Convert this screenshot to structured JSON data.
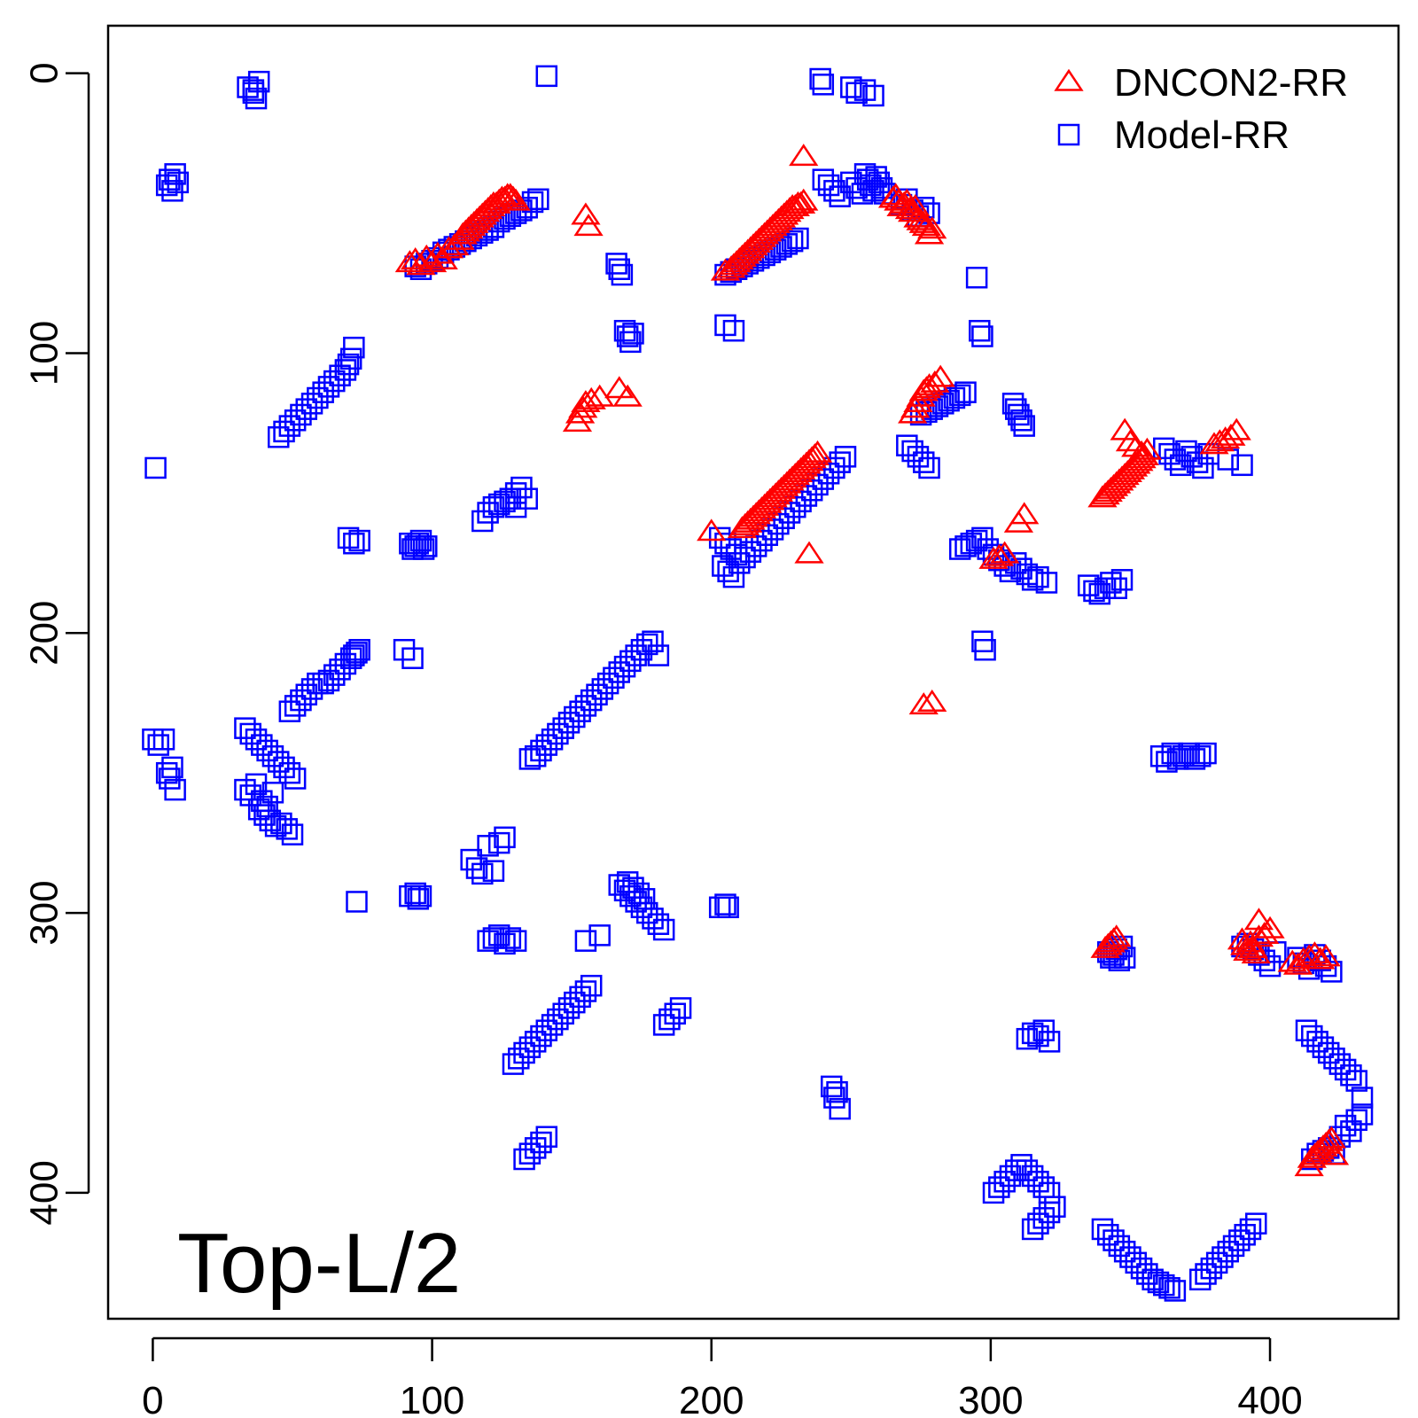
{
  "chart_data": {
    "type": "scatter",
    "title": "",
    "xlabel": "",
    "ylabel": "",
    "annotation": "Top-L/2",
    "xlim": [
      -16,
      446
    ],
    "ylim": [
      445,
      -17
    ],
    "y_reversed": true,
    "x_ticks": [
      0,
      100,
      200,
      300,
      400
    ],
    "y_ticks": [
      0,
      100,
      200,
      300,
      400
    ],
    "x_tick_labels": [
      "0",
      "100",
      "200",
      "300",
      "400"
    ],
    "y_tick_labels": [
      "0",
      "100",
      "200",
      "300",
      "400"
    ],
    "grid": false,
    "legend_position": "top-right",
    "series": [
      {
        "name": "DNCON2-RR",
        "marker": "triangle",
        "color": "#ff0000",
        "x": [
          92,
          94,
          96,
          98,
          100,
          102,
          104,
          106,
          108,
          110,
          111,
          112,
          113,
          114,
          115,
          116,
          117,
          118,
          119,
          120,
          121,
          122,
          123,
          124,
          125,
          126,
          127,
          128,
          129,
          130,
          155,
          156,
          152,
          153,
          154,
          155,
          157,
          160,
          167,
          170,
          205,
          207,
          208,
          209,
          210,
          211,
          212,
          213,
          214,
          215,
          216,
          217,
          218,
          219,
          220,
          221,
          222,
          223,
          224,
          225,
          226,
          227,
          228,
          229,
          230,
          231,
          232,
          233,
          233,
          265,
          266,
          267,
          268,
          269,
          270,
          271,
          272,
          273,
          274,
          275,
          276,
          277,
          278,
          279,
          272,
          273,
          274,
          275,
          276,
          277,
          278,
          280,
          282,
          200,
          211,
          212,
          213,
          214,
          215,
          216,
          217,
          218,
          219,
          220,
          221,
          222,
          223,
          224,
          225,
          226,
          227,
          228,
          229,
          230,
          231,
          232,
          233,
          234,
          235,
          236,
          237,
          238,
          235,
          276,
          279,
          301,
          303,
          305,
          310,
          312,
          348,
          350,
          352,
          354,
          356,
          340,
          341,
          342,
          343,
          344,
          345,
          346,
          347,
          348,
          349,
          350,
          351,
          352,
          353,
          354,
          355,
          380,
          382,
          384,
          386,
          388,
          341,
          342,
          343,
          344,
          345,
          394,
          396,
          390,
          391,
          392,
          393,
          394,
          395,
          396,
          398,
          400,
          408,
          410,
          412,
          414,
          416,
          418,
          420,
          414,
          415,
          416,
          417,
          418,
          419,
          420,
          421,
          422,
          423
        ],
        "y": [
          68,
          67,
          69,
          66,
          68,
          65,
          67,
          63,
          62,
          60,
          58,
          57,
          56,
          55,
          54,
          53,
          52,
          51,
          50,
          49,
          48,
          47,
          47,
          46,
          45,
          45,
          44,
          44,
          45,
          46,
          51,
          55,
          125,
          122,
          120,
          118,
          117,
          116,
          113,
          116,
          71,
          70,
          69,
          68,
          67,
          66,
          65,
          64,
          63,
          62,
          61,
          60,
          59,
          58,
          57,
          56,
          55,
          54,
          53,
          52,
          51,
          50,
          49,
          48,
          48,
          47,
          47,
          46,
          30,
          45,
          44,
          46,
          48,
          47,
          46,
          49,
          50,
          48,
          52,
          53,
          54,
          55,
          58,
          56,
          122,
          120,
          118,
          116,
          114,
          113,
          112,
          111,
          109,
          164,
          163,
          162,
          161,
          160,
          159,
          158,
          157,
          156,
          155,
          154,
          153,
          152,
          151,
          150,
          149,
          148,
          147,
          146,
          145,
          144,
          143,
          142,
          141,
          140,
          139,
          138,
          137,
          136,
          172,
          226,
          225,
          174,
          173,
          172,
          161,
          158,
          128,
          132,
          134,
          136,
          135,
          152,
          151,
          150,
          149,
          148,
          147,
          146,
          145,
          144,
          143,
          142,
          141,
          140,
          139,
          138,
          137,
          133,
          132,
          131,
          130,
          128,
          313,
          312,
          311,
          310,
          309,
          313,
          303,
          310,
          312,
          314,
          311,
          313,
          315,
          309,
          308,
          306,
          318,
          319,
          317,
          316,
          315,
          317,
          316,
          391,
          388,
          387,
          386,
          385,
          384,
          383,
          382,
          381,
          387
        ]
      },
      {
        "name": "Model-RR",
        "marker": "square",
        "color": "#0000ff",
        "x": [
          34,
          36,
          38,
          37,
          36,
          141,
          5,
          6,
          7,
          8,
          9,
          239,
          240,
          250,
          252,
          255,
          258,
          240,
          242,
          244,
          246,
          250,
          252,
          254,
          255,
          256,
          257,
          258,
          259,
          260,
          261,
          262,
          268,
          270,
          272,
          274,
          276,
          278,
          94,
          96,
          98,
          100,
          102,
          104,
          106,
          108,
          110,
          112,
          114,
          116,
          118,
          120,
          122,
          124,
          126,
          128,
          130,
          132,
          134,
          136,
          138,
          205,
          207,
          209,
          211,
          213,
          215,
          217,
          219,
          221,
          223,
          225,
          227,
          229,
          231,
          166,
          167,
          168,
          169,
          170,
          171,
          172,
          205,
          208,
          295,
          296,
          297,
          45,
          47,
          49,
          51,
          53,
          55,
          57,
          59,
          61,
          63,
          65,
          67,
          69,
          70,
          71,
          72,
          1,
          118,
          120,
          122,
          124,
          126,
          128,
          130,
          70,
          72,
          74,
          92,
          93,
          94,
          95,
          96,
          97,
          98,
          275,
          277,
          279,
          281,
          283,
          285,
          287,
          289,
          291,
          308,
          309,
          310,
          311,
          312,
          362,
          364,
          366,
          368,
          370,
          372,
          374,
          376,
          378,
          385,
          390,
          270,
          272,
          274,
          276,
          278,
          204,
          206,
          208,
          210,
          212,
          214,
          216,
          218,
          220,
          222,
          224,
          226,
          228,
          230,
          232,
          234,
          236,
          238,
          240,
          242,
          244,
          246,
          248,
          203,
          205,
          207,
          209,
          289,
          291,
          293,
          295,
          297,
          299,
          301,
          303,
          305,
          307,
          309,
          311,
          313,
          315,
          317,
          320,
          335,
          337,
          339,
          341,
          343,
          345,
          347,
          297,
          298,
          49,
          51,
          53,
          55,
          57,
          59,
          61,
          63,
          65,
          67,
          69,
          71,
          72,
          73,
          74,
          90,
          93,
          135,
          137,
          139,
          141,
          143,
          145,
          147,
          149,
          151,
          153,
          155,
          157,
          159,
          161,
          163,
          165,
          167,
          169,
          171,
          173,
          175,
          177,
          179,
          181,
          0,
          2,
          4,
          5,
          6,
          7,
          8,
          33,
          35,
          37,
          39,
          41,
          43,
          45,
          47,
          49,
          51,
          33,
          35,
          37,
          39,
          41,
          43,
          38,
          40,
          42,
          44,
          46,
          48,
          50,
          361,
          363,
          365,
          367,
          369,
          371,
          373,
          375,
          377,
          114,
          116,
          118,
          120,
          122,
          124,
          126,
          73,
          92,
          94,
          95,
          96,
          167,
          169,
          171,
          173,
          175,
          177,
          179,
          181,
          183,
          170,
          172,
          174,
          176,
          120,
          122,
          124,
          126,
          128,
          130,
          155,
          160,
          203,
          205,
          206,
          342,
          343,
          344,
          345,
          346,
          347,
          348,
          390,
          392,
          394,
          396,
          398,
          400,
          402,
          410,
          412,
          414,
          416,
          418,
          420,
          422,
          313,
          315,
          317,
          319,
          321,
          183,
          185,
          187,
          189,
          129,
          131,
          133,
          135,
          137,
          139,
          141,
          143,
          145,
          147,
          149,
          151,
          153,
          155,
          157,
          133,
          135,
          137,
          139,
          141,
          243,
          244,
          245,
          246,
          413,
          415,
          417,
          419,
          421,
          423,
          425,
          427,
          429,
          431,
          433,
          425,
          427,
          429,
          431,
          433,
          415,
          417,
          419,
          421,
          423,
          301,
          303,
          305,
          307,
          309,
          311,
          313,
          315,
          317,
          319,
          321,
          315,
          317,
          319,
          321,
          323,
          340,
          342,
          344,
          346,
          348,
          350,
          352,
          354,
          356,
          358,
          360,
          362,
          364,
          366,
          375,
          377,
          379,
          381,
          383,
          385,
          387,
          389,
          391,
          393,
          395,
          130,
          132,
          134
        ],
        "y": [
          5,
          7,
          3,
          9,
          6,
          1,
          40,
          38,
          42,
          36,
          39,
          2,
          4,
          5,
          7,
          6,
          8,
          38,
          40,
          42,
          44,
          39,
          41,
          43,
          36,
          38,
          40,
          42,
          37,
          39,
          41,
          43,
          47,
          45,
          49,
          51,
          48,
          50,
          69,
          70,
          68,
          67,
          66,
          64,
          63,
          62,
          61,
          60,
          59,
          58,
          57,
          56,
          55,
          53,
          52,
          51,
          50,
          49,
          48,
          46,
          45,
          72,
          71,
          70,
          69,
          68,
          67,
          66,
          65,
          64,
          63,
          62,
          61,
          60,
          59,
          68,
          70,
          72,
          92,
          94,
          96,
          93,
          90,
          92,
          73,
          92,
          94,
          130,
          128,
          126,
          124,
          122,
          120,
          118,
          116,
          114,
          112,
          110,
          108,
          106,
          104,
          102,
          98,
          141,
          160,
          157,
          155,
          154,
          153,
          152,
          155,
          166,
          168,
          167,
          168,
          170,
          169,
          168,
          167,
          170,
          169,
          122,
          121,
          120,
          119,
          118,
          117,
          116,
          115,
          114,
          118,
          120,
          122,
          124,
          126,
          134,
          136,
          138,
          140,
          135,
          137,
          139,
          141,
          136,
          138,
          140,
          133,
          135,
          137,
          139,
          141,
          176,
          178,
          180,
          175,
          173,
          171,
          169,
          167,
          165,
          163,
          161,
          159,
          157,
          155,
          153,
          151,
          149,
          147,
          145,
          143,
          141,
          139,
          137,
          166,
          168,
          170,
          172,
          170,
          169,
          168,
          167,
          166,
          170,
          172,
          174,
          176,
          178,
          175,
          177,
          179,
          181,
          180,
          182,
          183,
          185,
          186,
          184,
          182,
          184,
          181,
          203,
          206,
          228,
          226,
          224,
          222,
          220,
          218,
          218,
          217,
          215,
          213,
          211,
          209,
          208,
          207,
          206,
          206,
          209,
          245,
          244,
          242,
          240,
          238,
          236,
          234,
          232,
          230,
          228,
          226,
          224,
          222,
          220,
          218,
          216,
          214,
          212,
          210,
          208,
          206,
          204,
          203,
          208,
          238,
          240,
          238,
          250,
          252,
          248,
          256,
          234,
          236,
          238,
          240,
          242,
          244,
          246,
          248,
          250,
          252,
          256,
          258,
          254,
          260,
          262,
          257,
          263,
          265,
          267,
          269,
          268,
          270,
          272,
          244,
          246,
          243,
          245,
          244,
          243,
          245,
          244,
          243,
          281,
          284,
          286,
          276,
          285,
          275,
          273,
          296,
          294,
          293,
          295,
          294,
          290,
          292,
          294,
          296,
          298,
          300,
          302,
          304,
          306,
          289,
          291,
          293,
          295,
          310,
          309,
          308,
          311,
          309,
          310,
          310,
          308,
          298,
          297,
          298,
          314,
          316,
          315,
          313,
          317,
          312,
          316,
          312,
          311,
          313,
          315,
          317,
          319,
          314,
          316,
          318,
          320,
          315,
          317,
          319,
          321,
          345,
          343,
          344,
          342,
          346,
          340,
          338,
          336,
          334,
          354,
          352,
          350,
          348,
          346,
          344,
          342,
          340,
          338,
          336,
          334,
          332,
          330,
          328,
          326,
          388,
          386,
          384,
          382,
          380,
          362,
          366,
          364,
          370,
          342,
          344,
          346,
          348,
          350,
          352,
          354,
          356,
          358,
          360,
          366,
          380,
          376,
          378,
          374,
          372,
          388,
          386,
          385,
          384,
          386,
          400,
          398,
          396,
          394,
          392,
          390,
          392,
          394,
          396,
          398,
          400,
          413,
          411,
          409,
          407,
          405,
          413,
          415,
          417,
          419,
          421,
          423,
          425,
          427,
          429,
          431,
          432,
          433,
          434,
          435,
          431,
          429,
          427,
          425,
          423,
          421,
          419,
          417,
          415,
          413,
          411,
          150,
          148,
          152
        ]
      }
    ]
  }
}
